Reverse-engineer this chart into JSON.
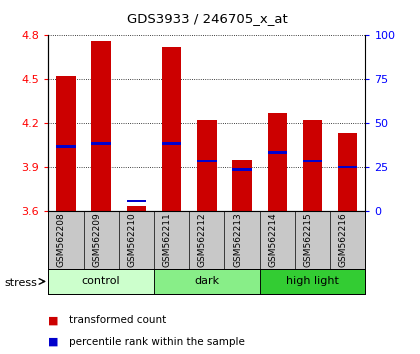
{
  "title": "GDS3933 / 246705_x_at",
  "samples": [
    "GSM562208",
    "GSM562209",
    "GSM562210",
    "GSM562211",
    "GSM562212",
    "GSM562213",
    "GSM562214",
    "GSM562215",
    "GSM562216"
  ],
  "bar_values": [
    4.52,
    4.76,
    3.63,
    4.72,
    4.22,
    3.95,
    4.27,
    4.22,
    4.13
  ],
  "bar_bottom": 3.6,
  "percentile_values": [
    4.04,
    4.06,
    3.665,
    4.06,
    3.94,
    3.88,
    4.0,
    3.94,
    3.9
  ],
  "ylim_left": [
    3.6,
    4.8
  ],
  "ylim_right": [
    0,
    100
  ],
  "yticks_left": [
    3.6,
    3.9,
    4.2,
    4.5,
    4.8
  ],
  "yticks_right": [
    0,
    25,
    50,
    75,
    100
  ],
  "bar_color": "#cc0000",
  "percentile_color": "#0000cc",
  "background_labels": "#c8c8c8",
  "groups": [
    {
      "label": "control",
      "color": "#ccffcc",
      "start": 0,
      "end": 3
    },
    {
      "label": "dark",
      "color": "#88ee88",
      "start": 3,
      "end": 6
    },
    {
      "label": "high light",
      "color": "#33cc33",
      "start": 6,
      "end": 9
    }
  ],
  "stress_label": "stress",
  "legend_items": [
    {
      "color": "#cc0000",
      "label": "transformed count"
    },
    {
      "color": "#0000cc",
      "label": "percentile rank within the sample"
    }
  ],
  "percentile_bar_height": 0.018,
  "bar_width": 0.55
}
